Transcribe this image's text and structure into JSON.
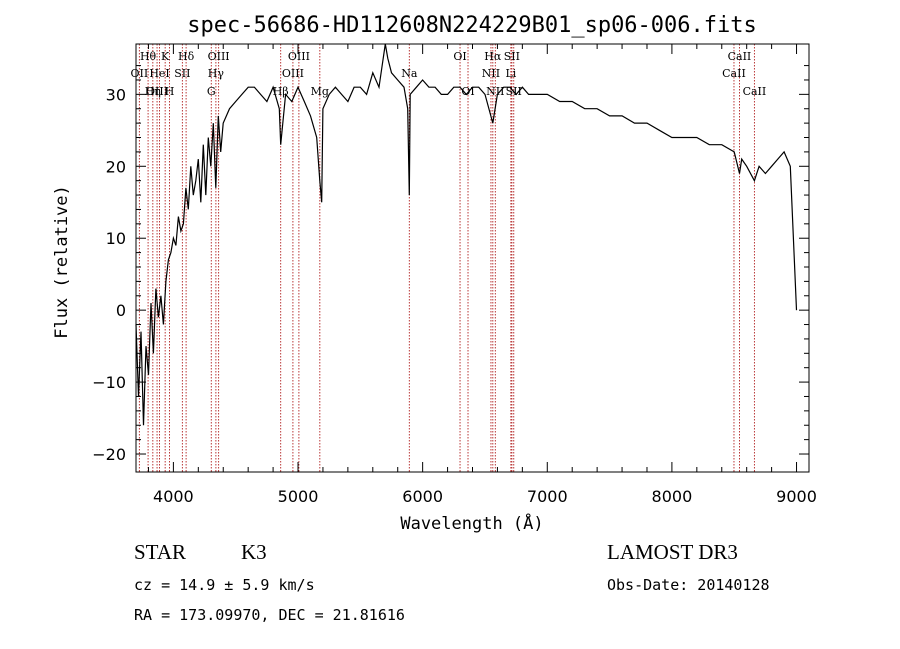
{
  "chart_data": {
    "type": "line",
    "title": "spec-56686-HD112608N224229B01_sp06-006.fits",
    "xlabel": "Wavelength (Å)",
    "ylabel": "Flux (relative)",
    "xlim": [
      3700,
      9100
    ],
    "ylim": [
      -22.5,
      37
    ],
    "x_ticks": [
      4000,
      5000,
      6000,
      7000,
      8000,
      9000
    ],
    "y_ticks": [
      -20,
      -10,
      0,
      10,
      20,
      30
    ],
    "grid": false,
    "line_color": "#000000",
    "marker_color": "#b22222",
    "series": [
      {
        "x": [
          3700,
          3720,
          3740,
          3760,
          3780,
          3800,
          3820,
          3840,
          3860,
          3880,
          3900,
          3920,
          3940,
          3960,
          3980,
          4000,
          4020,
          4040,
          4060,
          4080,
          4100,
          4120,
          4140,
          4160,
          4180,
          4200,
          4220,
          4240,
          4260,
          4280,
          4300,
          4320,
          4340,
          4360,
          4380,
          4400,
          4450,
          4500,
          4550,
          4600,
          4650,
          4700,
          4750,
          4800,
          4850,
          4861,
          4900,
          4950,
          5000,
          5050,
          5100,
          5150,
          5175,
          5190,
          5200,
          5250,
          5300,
          5350,
          5400,
          5450,
          5500,
          5550,
          5600,
          5650,
          5700,
          5720,
          5750,
          5800,
          5850,
          5880,
          5893,
          5900,
          5950,
          6000,
          6050,
          6100,
          6150,
          6200,
          6250,
          6300,
          6350,
          6400,
          6450,
          6500,
          6563,
          6600,
          6650,
          6700,
          6750,
          6800,
          6850,
          6900,
          7000,
          7100,
          7200,
          7300,
          7400,
          7500,
          7600,
          7700,
          7800,
          7900,
          8000,
          8100,
          8200,
          8300,
          8400,
          8500,
          8542,
          8560,
          8600,
          8662,
          8700,
          8750,
          8800,
          8850,
          8900,
          8950,
          9000
        ],
        "y": [
          -2,
          -12,
          -3,
          -16,
          -5,
          -9,
          1,
          -6,
          3,
          -1,
          2,
          -2,
          4,
          7,
          8,
          10,
          9,
          13,
          11,
          12,
          17,
          14,
          20,
          16,
          18,
          21,
          15,
          23,
          16,
          24,
          20,
          26,
          17,
          27,
          22,
          26,
          28,
          29,
          30,
          31,
          31,
          30,
          29,
          31,
          28,
          23,
          30,
          29,
          31,
          29,
          27,
          24,
          18,
          15,
          28,
          30,
          31,
          30,
          29,
          31,
          31,
          30,
          33,
          31,
          38,
          35,
          33,
          32,
          31,
          28,
          16,
          30,
          31,
          32,
          31,
          31,
          30,
          30,
          31,
          31,
          30,
          31,
          31,
          30,
          26,
          30,
          31,
          31,
          30,
          31,
          30,
          30,
          30,
          29,
          29,
          28,
          28,
          27,
          27,
          26,
          26,
          25,
          24,
          24,
          24,
          23,
          23,
          22,
          19,
          21,
          20,
          18,
          20,
          19,
          20,
          21,
          22,
          20,
          0
        ]
      }
    ],
    "spectral_lines": [
      {
        "name": "Hθ",
        "wavelength": 3797,
        "row": 1
      },
      {
        "name": "OII",
        "wavelength": 3727,
        "row": 2
      },
      {
        "name": "OIII",
        "wavelength": 3869,
        "row": 3
      },
      {
        "name": "Hη",
        "wavelength": 3835,
        "row": 3
      },
      {
        "name": "K",
        "wavelength": 3934,
        "row": 1
      },
      {
        "name": "HeI",
        "wavelength": 3889,
        "row": 2
      },
      {
        "name": "H",
        "wavelength": 3969,
        "row": 3
      },
      {
        "name": "Hδ",
        "wavelength": 4102,
        "row": 1
      },
      {
        "name": "SII",
        "wavelength": 4072,
        "row": 2
      },
      {
        "name": "OIII",
        "wavelength": 4363,
        "row": 1
      },
      {
        "name": "Hγ",
        "wavelength": 4341,
        "row": 2
      },
      {
        "name": "G",
        "wavelength": 4304,
        "row": 3
      },
      {
        "name": "Hβ",
        "wavelength": 4861,
        "row": 3
      },
      {
        "name": "OIII",
        "wavelength": 5007,
        "row": 1
      },
      {
        "name": "OIII",
        "wavelength": 4959,
        "row": 2
      },
      {
        "name": "Mg",
        "wavelength": 5175,
        "row": 3
      },
      {
        "name": "Na",
        "wavelength": 5893,
        "row": 2
      },
      {
        "name": "OI",
        "wavelength": 6300,
        "row": 1
      },
      {
        "name": "OI",
        "wavelength": 6364,
        "row": 3
      },
      {
        "name": "Hα",
        "wavelength": 6563,
        "row": 1
      },
      {
        "name": "NII",
        "wavelength": 6548,
        "row": 2
      },
      {
        "name": "NII",
        "wavelength": 6583,
        "row": 3
      },
      {
        "name": "SII",
        "wavelength": 6716,
        "row": 1
      },
      {
        "name": "Li",
        "wavelength": 6708,
        "row": 2
      },
      {
        "name": "SII",
        "wavelength": 6731,
        "row": 3
      },
      {
        "name": "CaII",
        "wavelength": 8542,
        "row": 1
      },
      {
        "name": "CaII",
        "wavelength": 8498,
        "row": 2
      },
      {
        "name": "CaII",
        "wavelength": 8662,
        "row": 3
      }
    ]
  },
  "info": {
    "object_class": "STAR",
    "subclass": "K3",
    "survey": "LAMOST DR3",
    "redshift_line": "cz = 14.9 ± 5.9 km/s",
    "obs_date": "Obs-Date: 20140128",
    "coords": "RA = 173.09970, DEC =  21.81616"
  }
}
